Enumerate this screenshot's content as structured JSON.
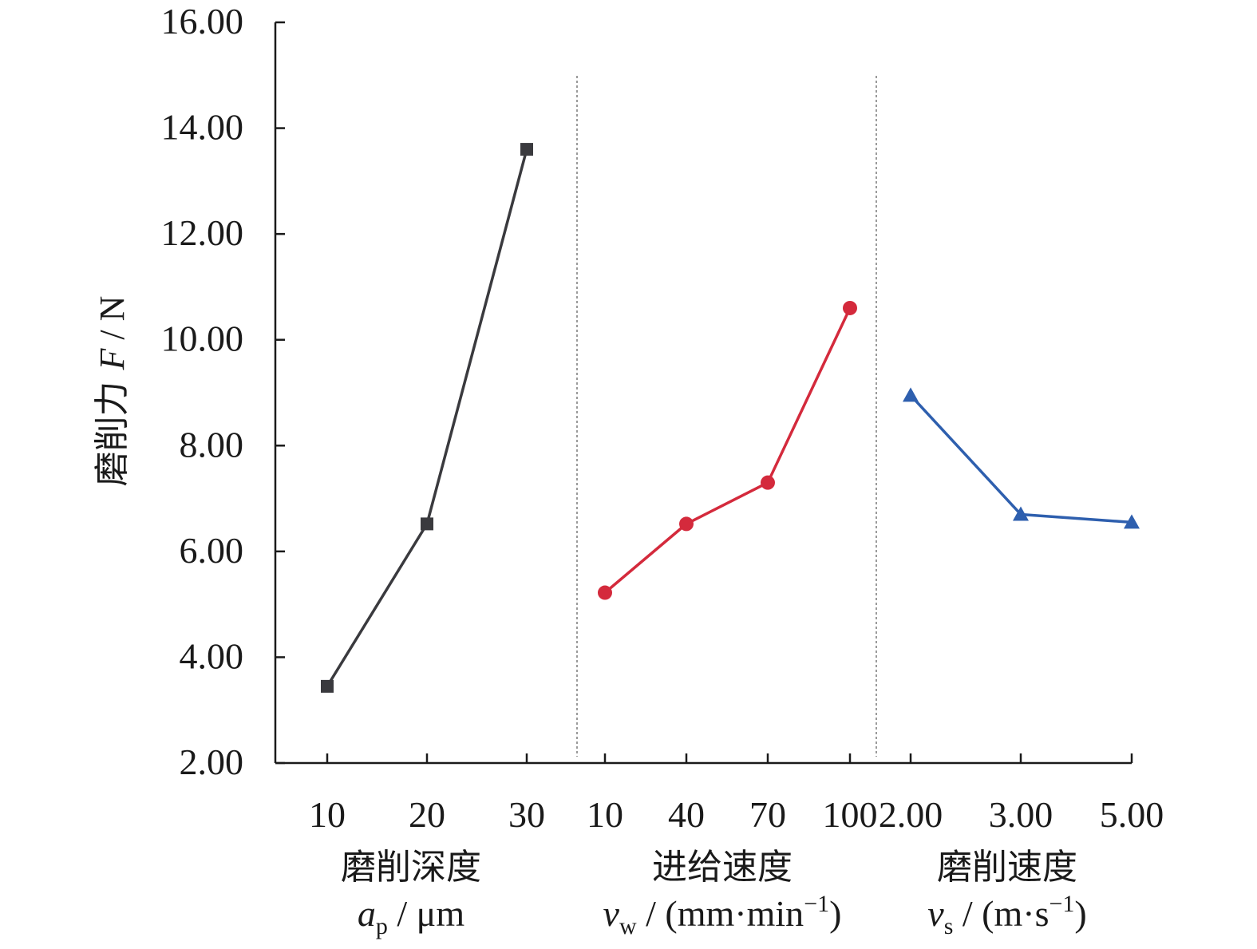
{
  "chart_data": {
    "type": "line",
    "ylabel": {
      "cjk": "磨削力",
      "symbol": "F",
      "unit": "/ N"
    },
    "ylim": [
      2.0,
      16.0
    ],
    "yticks": [
      "2.00",
      "4.00",
      "6.00",
      "8.00",
      "10.00",
      "12.00",
      "14.00",
      "16.00"
    ],
    "grid": false,
    "legend": "none",
    "groups": [
      {
        "name": "磨削深度",
        "symbol": "a",
        "subscript": "p",
        "unit": " / μm",
        "categories": [
          "10",
          "20",
          "30"
        ],
        "values": [
          3.45,
          6.52,
          13.6
        ],
        "color": "#3a3a3e",
        "marker": "square"
      },
      {
        "name": "进给速度",
        "symbol": "v",
        "subscript": "w",
        "unit": " / (mm·min",
        "unit_sup": "−1",
        "unit_close": ")",
        "categories": [
          "10",
          "40",
          "70",
          "100"
        ],
        "values": [
          5.22,
          6.52,
          7.3,
          10.6
        ],
        "color": "#d42a3c",
        "marker": "circle"
      },
      {
        "name": "磨削速度",
        "symbol": "v",
        "subscript": "s",
        "unit": " / (m·s",
        "unit_sup": "−1",
        "unit_close": ")",
        "categories": [
          "2.00",
          "3.00",
          "5.00"
        ],
        "values": [
          8.95,
          6.7,
          6.55
        ],
        "color": "#2e5fae",
        "marker": "triangle"
      }
    ]
  }
}
